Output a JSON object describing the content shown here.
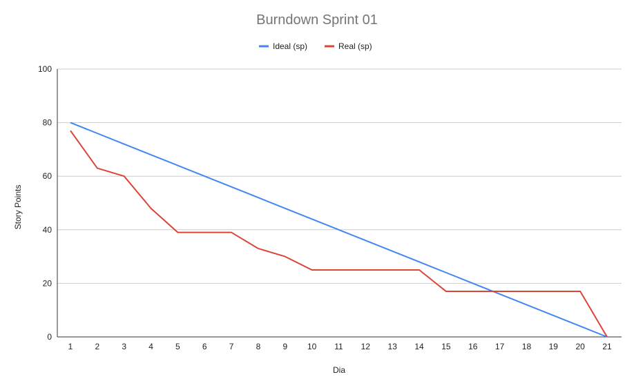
{
  "chart_data": {
    "type": "line",
    "title": "Burndown Sprint 01",
    "xlabel": "Dia",
    "ylabel": "Story Points",
    "x": [
      1,
      2,
      3,
      4,
      5,
      6,
      7,
      8,
      9,
      10,
      11,
      12,
      13,
      14,
      15,
      16,
      17,
      18,
      19,
      20,
      21
    ],
    "x_tick_labels": [
      "1",
      "2",
      "3",
      "4",
      "5",
      "6",
      "7",
      "8",
      "9",
      "10",
      "11",
      "12",
      "13",
      "14",
      "15",
      "16",
      "17",
      "18",
      "19",
      "20",
      "21"
    ],
    "ylim": [
      0,
      100
    ],
    "y_ticks": [
      0,
      20,
      40,
      60,
      80,
      100
    ],
    "y_tick_labels": [
      "0",
      "20",
      "40",
      "60",
      "80",
      "100"
    ],
    "grid": true,
    "legend_position": "top-center",
    "series": [
      {
        "name": "Ideal (sp)",
        "color": "#4285f4",
        "values": [
          80,
          76,
          72,
          68,
          64,
          60,
          56,
          52,
          48,
          44,
          40,
          36,
          32,
          28,
          24,
          20,
          16,
          12,
          8,
          4,
          0
        ]
      },
      {
        "name": "Real (sp)",
        "color": "#db4437",
        "values": [
          77,
          63,
          60,
          48,
          39,
          39,
          39,
          33,
          30,
          25,
          25,
          25,
          25,
          25,
          17,
          17,
          17,
          17,
          17,
          17,
          0
        ]
      }
    ]
  }
}
